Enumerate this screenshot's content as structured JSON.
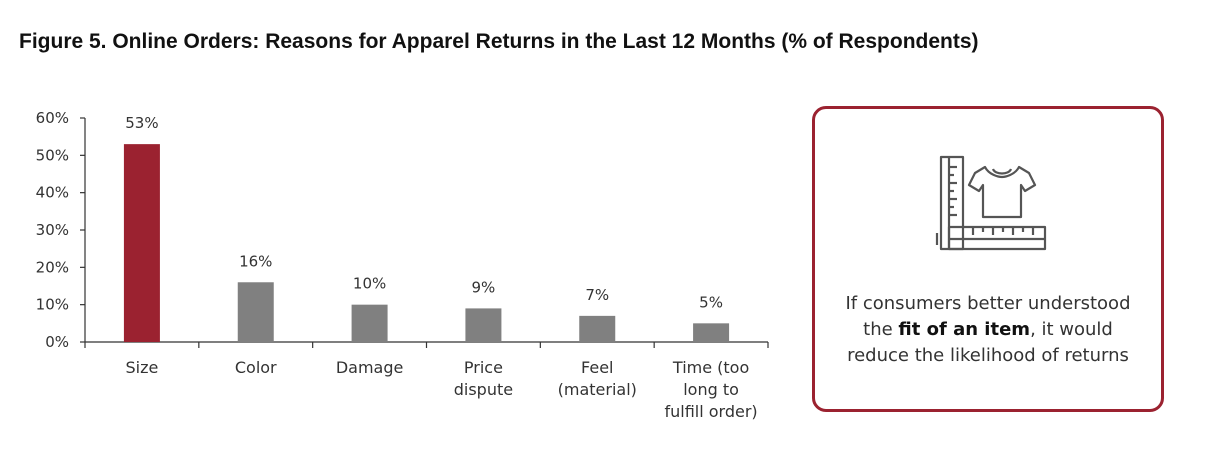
{
  "title": "Figure 5. Online Orders: Reasons for Apparel Returns in the Last 12 Months (% of Respondents)",
  "chart_data": {
    "type": "bar",
    "categories": [
      [
        "Size"
      ],
      [
        "Color"
      ],
      [
        "Damage"
      ],
      [
        "Price",
        "dispute"
      ],
      [
        "Feel",
        "(material)"
      ],
      [
        "Time (too",
        "long to",
        "fulfill order)"
      ]
    ],
    "values": [
      53,
      16,
      10,
      9,
      7,
      5
    ],
    "data_labels": [
      "53%",
      "16%",
      "10%",
      "9%",
      "7%",
      "5%"
    ],
    "ylim": [
      0,
      60
    ],
    "yticks": [
      "0%",
      "10%",
      "20%",
      "30%",
      "40%",
      "50%",
      "60%"
    ],
    "highlight_index": 0,
    "colors": {
      "highlight": "#9b2230",
      "default": "#808080",
      "axis": "#333333"
    },
    "grid": false,
    "legend": "none"
  },
  "callout": {
    "icon": "ruler-tshirt-icon",
    "text_before": "If consumers better understood the ",
    "text_bold": "fit of an item",
    "text_after": ", it would reduce the likelihood of returns",
    "border_color": "#9b2230"
  }
}
